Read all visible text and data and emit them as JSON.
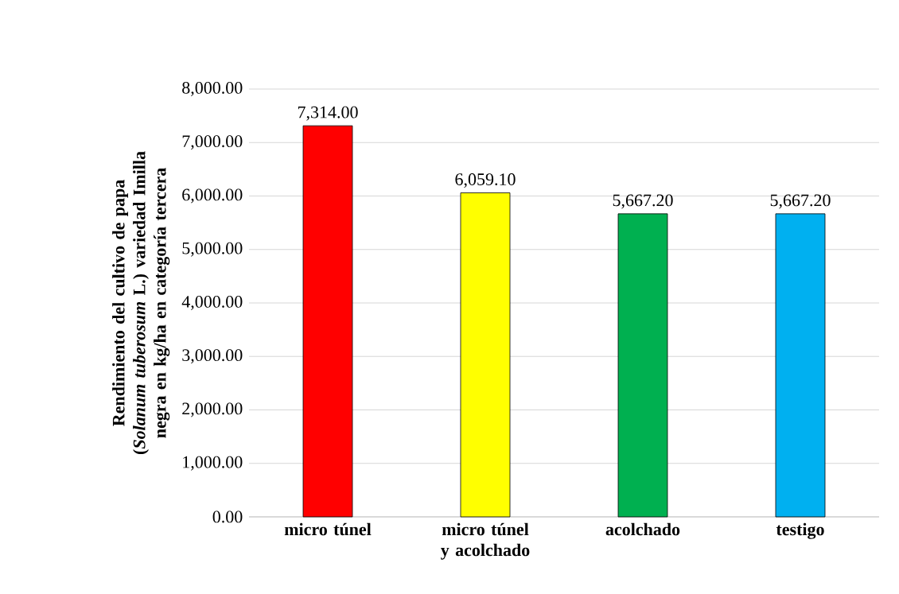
{
  "chart_data": {
    "type": "bar",
    "ylabel": "Rendimiento del cultivo de papa (*Solanum tuberosum* L.) variedad Imilla negra en kg/ha en categoría tercera",
    "categories": [
      "micro túnel",
      "micro túnel y acolchado",
      "acolchado",
      "testigo"
    ],
    "values": [
      7314.0,
      6059.1,
      5667.2,
      5667.2
    ],
    "colors": [
      "#ff0000",
      "#ffff00",
      "#00b050",
      "#00b0f0"
    ],
    "value_labels": [
      "7,314.00",
      "6,059.10",
      "5,667.20",
      "5,667.20"
    ],
    "ylim": [
      0,
      8000
    ],
    "yticks": [
      {
        "value": 0,
        "label": "0.00"
      },
      {
        "value": 1000,
        "label": "1,000.00"
      },
      {
        "value": 2000,
        "label": "2,000.00"
      },
      {
        "value": 3000,
        "label": "3,000.00"
      },
      {
        "value": 4000,
        "label": "4,000.00"
      },
      {
        "value": 5000,
        "label": "5,000.00"
      },
      {
        "value": 6000,
        "label": "6,000.00"
      },
      {
        "value": 7000,
        "label": "7,000.00"
      },
      {
        "value": 8000,
        "label": "8,000.00"
      }
    ],
    "grid": "y"
  }
}
